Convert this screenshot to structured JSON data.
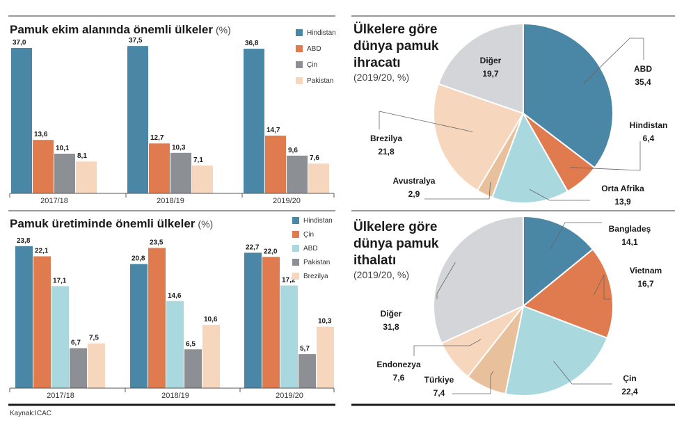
{
  "source": "Kaynak:ICAC",
  "chart_data": [
    {
      "type": "bar",
      "title": "Pamuk ekim alanında önemli ülkeler",
      "unit": "(%)",
      "categories": [
        "2017/18",
        "2018/19",
        "2019/20"
      ],
      "ylim": [
        0,
        40
      ],
      "legend_position": "top-right",
      "series": [
        {
          "name": "Hindistan",
          "color": "#4a86a5",
          "values": [
            37.0,
            37.5,
            36.8
          ],
          "labels": [
            "37,0",
            "37,5",
            "36,8"
          ]
        },
        {
          "name": "ABD",
          "color": "#e07b4f",
          "values": [
            13.6,
            12.7,
            14.7
          ],
          "labels": [
            "13,6",
            "12,7",
            "14,7"
          ]
        },
        {
          "name": "Çin",
          "color": "#8c8f93",
          "values": [
            10.1,
            10.3,
            9.6
          ],
          "labels": [
            "10,1",
            "10,3",
            "9,6"
          ]
        },
        {
          "name": "Pakistan",
          "color": "#f6d7bd",
          "values": [
            8.1,
            7.1,
            7.6
          ],
          "labels": [
            "8,1",
            "7,1",
            "7,6"
          ]
        }
      ]
    },
    {
      "type": "bar",
      "title": "Pamuk üretiminde önemli ülkeler",
      "unit": "(%)",
      "categories": [
        "2017/18",
        "2018/19",
        "2019/20"
      ],
      "ylim": [
        0,
        26
      ],
      "legend_position": "top-right",
      "series": [
        {
          "name": "Hindistan",
          "color": "#4a86a5",
          "values": [
            23.8,
            20.8,
            22.7
          ],
          "labels": [
            "23,8",
            "20,8",
            "22,7"
          ]
        },
        {
          "name": "Çin",
          "color": "#e07b4f",
          "values": [
            22.1,
            23.5,
            22.0
          ],
          "labels": [
            "22,1",
            "23,5",
            "22,0"
          ]
        },
        {
          "name": "ABD",
          "color": "#a9d8df",
          "values": [
            17.1,
            14.6,
            17.2
          ],
          "labels": [
            "17,1",
            "14,6",
            "17,2"
          ]
        },
        {
          "name": "Pakistan",
          "color": "#8c8f93",
          "values": [
            6.7,
            6.5,
            5.7
          ],
          "labels": [
            "6,7",
            "6,5",
            "5,7"
          ]
        },
        {
          "name": "Brezilya",
          "color": "#f6d7bd",
          "values": [
            7.5,
            10.6,
            10.3
          ],
          "labels": [
            "7,5",
            "10,6",
            "10,3"
          ]
        }
      ]
    },
    {
      "type": "pie",
      "title_lines": [
        "Ülkelere göre",
        "dünya pamuk",
        "ihracatı"
      ],
      "subtitle": "(2019/20, %)",
      "slices": [
        {
          "name": "ABD",
          "value": 35.4,
          "label": "35,4",
          "color": "#4a86a5"
        },
        {
          "name": "Hindistan",
          "value": 6.4,
          "label": "6,4",
          "color": "#e07b4f"
        },
        {
          "name": "Orta Afrika",
          "value": 13.9,
          "label": "13,9",
          "color": "#a9d8df"
        },
        {
          "name": "Avustralya",
          "value": 2.9,
          "label": "2,9",
          "color": "#e8c19c"
        },
        {
          "name": "Brezilya",
          "value": 21.8,
          "label": "21,8",
          "color": "#f6d7bd"
        },
        {
          "name": "Diğer",
          "value": 19.7,
          "label": "19,7",
          "color": "#d3d5d8"
        }
      ]
    },
    {
      "type": "pie",
      "title_lines": [
        "Ülkelere göre",
        "dünya pamuk",
        "ithalatı"
      ],
      "subtitle": "(2019/20, %)",
      "slices": [
        {
          "name": "Bangladeş",
          "value": 14.1,
          "label": "14,1",
          "color": "#4a86a5"
        },
        {
          "name": "Vietnam",
          "value": 16.7,
          "label": "16,7",
          "color": "#e07b4f"
        },
        {
          "name": "Çin",
          "value": 22.4,
          "label": "22,4",
          "color": "#a9d8df"
        },
        {
          "name": "Türkiye",
          "value": 7.4,
          "label": "7,4",
          "color": "#e8c19c"
        },
        {
          "name": "Endonezya",
          "value": 7.6,
          "label": "7,6",
          "color": "#f6d7bd"
        },
        {
          "name": "Diğer",
          "value": 31.8,
          "label": "31,8",
          "color": "#d3d5d8"
        }
      ]
    }
  ]
}
